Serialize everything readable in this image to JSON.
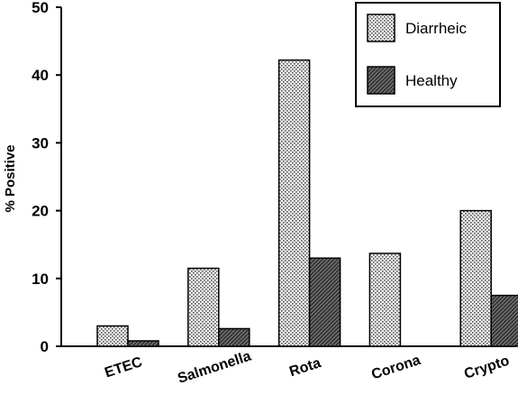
{
  "chart_data": {
    "type": "bar",
    "categories": [
      "ETEC",
      "Salmonella",
      "Rota",
      "Corona",
      "Crypto"
    ],
    "series": [
      {
        "name": "Diarrheic",
        "values": [
          3.0,
          11.5,
          42.2,
          13.7,
          20.0
        ],
        "pattern": "dotted",
        "color": "#d8d8d8"
      },
      {
        "name": "Healthy",
        "values": [
          0.8,
          2.6,
          13.0,
          0,
          7.5
        ],
        "pattern": "hatched",
        "color": "#444444"
      }
    ],
    "ylabel": "% Positive",
    "xlabel": "",
    "ylim": [
      0,
      50
    ],
    "yticks": [
      0,
      10,
      20,
      30,
      40,
      50
    ],
    "grid": false,
    "legend_position": "top-right"
  }
}
